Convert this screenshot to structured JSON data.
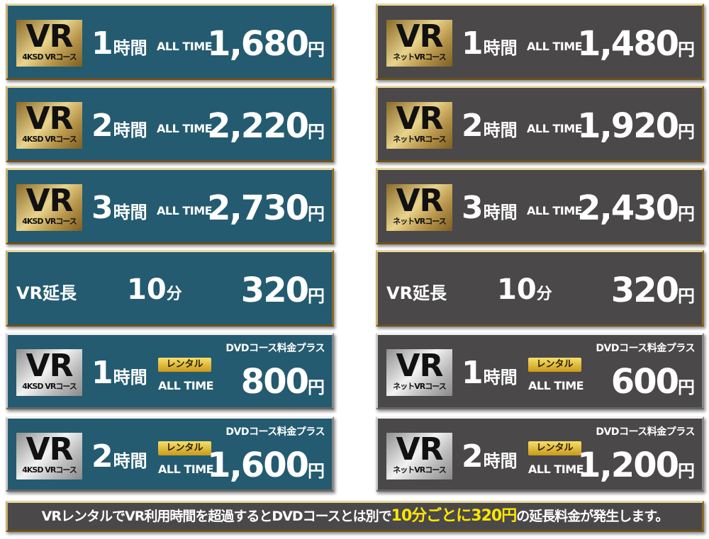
{
  "colors": {
    "teal": "#245b70",
    "gray": "#4a4848",
    "highlight": "#ffe600"
  },
  "left": {
    "badge_sub": "4KSD VRコース",
    "rows": [
      {
        "type": "time",
        "hours": "1",
        "unit": "時間",
        "alltime": "ALL TIME",
        "price": "1,680",
        "yen": "円"
      },
      {
        "type": "time",
        "hours": "2",
        "unit": "時間",
        "alltime": "ALL TIME",
        "price": "2,220",
        "yen": "円"
      },
      {
        "type": "time",
        "hours": "3",
        "unit": "時間",
        "alltime": "ALL TIME",
        "price": "2,730",
        "yen": "円"
      },
      {
        "type": "ext",
        "label": "VR延長",
        "minutes": "10",
        "minunit": "分",
        "price": "320",
        "yen": "円"
      },
      {
        "type": "rental",
        "hours": "1",
        "unit": "時間",
        "rental": "レンタル",
        "alltime": "ALL TIME",
        "plus": "DVDコース料金プラス",
        "price": "800",
        "yen": "円"
      },
      {
        "type": "rental",
        "hours": "2",
        "unit": "時間",
        "rental": "レンタル",
        "alltime": "ALL TIME",
        "plus": "DVDコース料金プラス",
        "price": "1,600",
        "yen": "円"
      }
    ]
  },
  "right": {
    "badge_sub": "ネットVRコース",
    "rows": [
      {
        "type": "time",
        "hours": "1",
        "unit": "時間",
        "alltime": "ALL TIME",
        "price": "1,480",
        "yen": "円"
      },
      {
        "type": "time",
        "hours": "2",
        "unit": "時間",
        "alltime": "ALL TIME",
        "price": "1,920",
        "yen": "円"
      },
      {
        "type": "time",
        "hours": "3",
        "unit": "時間",
        "alltime": "ALL TIME",
        "price": "2,430",
        "yen": "円"
      },
      {
        "type": "ext",
        "label": "VR延長",
        "minutes": "10",
        "minunit": "分",
        "price": "320",
        "yen": "円"
      },
      {
        "type": "rental",
        "hours": "1",
        "unit": "時間",
        "rental": "レンタル",
        "alltime": "ALL TIME",
        "plus": "DVDコース料金プラス",
        "price": "600",
        "yen": "円"
      },
      {
        "type": "rental",
        "hours": "2",
        "unit": "時間",
        "rental": "レンタル",
        "alltime": "ALL TIME",
        "plus": "DVDコース料金プラス",
        "price": "1,200",
        "yen": "円"
      }
    ]
  },
  "badge_vr": "VR",
  "notice": {
    "part1": "VRレンタルでVR利用時間を超過するとDVDコースとは別で",
    "hl1": "10分ごとに",
    "hl2": "320円",
    "part2": "の延長料金が発生します。"
  }
}
